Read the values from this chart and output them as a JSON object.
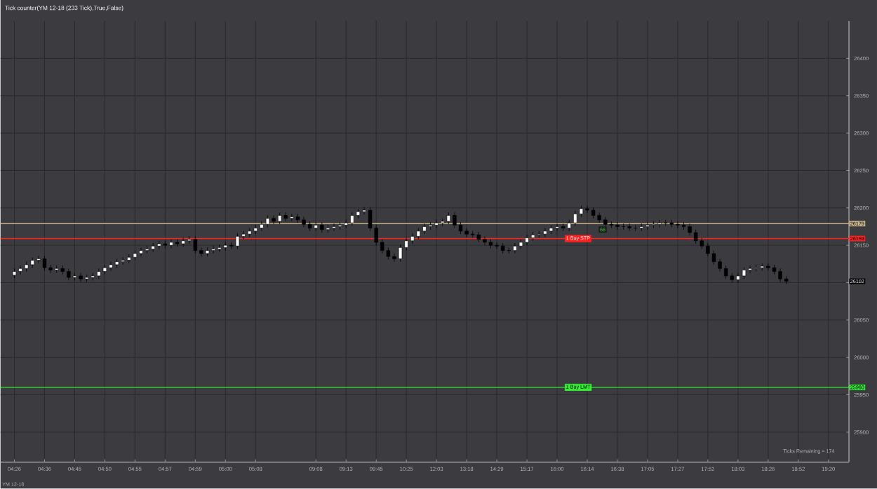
{
  "chart_data": {
    "type": "candlestick",
    "title": "Tick counter(YM 12-18 (233 Tick),True,False)",
    "categories": [
      "04:26",
      null,
      null,
      null,
      null,
      "04:36",
      null,
      null,
      null,
      null,
      "04:45",
      null,
      null,
      null,
      null,
      "04:50",
      null,
      null,
      null,
      null,
      "04:55",
      null,
      null,
      null,
      null,
      "04:57",
      null,
      null,
      null,
      null,
      "04:59",
      null,
      null,
      null,
      null,
      "05:00",
      null,
      null,
      null,
      null,
      "05:08",
      null,
      null,
      null,
      null,
      null,
      null,
      null,
      null,
      null,
      "09:08",
      null,
      null,
      null,
      null,
      "09:13",
      null,
      null,
      null,
      null,
      "09:45",
      null,
      null,
      null,
      null,
      "10:25",
      null,
      null,
      null,
      null,
      "12:03",
      null,
      null,
      null,
      null,
      "13:18",
      null,
      null,
      null,
      null,
      "14:29",
      null,
      null,
      null,
      null,
      "15:17",
      null,
      null,
      null,
      null,
      "16:00",
      null,
      null,
      null,
      null,
      "16:14",
      null,
      null,
      null,
      null,
      "16:38",
      null,
      null,
      null,
      null,
      "17:05",
      null,
      null,
      null,
      null,
      "17:27",
      null,
      null,
      null,
      null,
      "17:52",
      null,
      null,
      null,
      null,
      "18:03",
      null,
      null,
      null,
      null,
      "18:26",
      null,
      null,
      null,
      null,
      "18:52",
      null,
      null,
      null,
      null,
      "19:20"
    ],
    "ohlc": [
      [
        26110,
        26119,
        26106,
        26115
      ],
      [
        26115,
        26123,
        26111,
        26119
      ],
      [
        26119,
        26128,
        26115,
        26124
      ],
      [
        26124,
        26134,
        26120,
        26130
      ],
      [
        26130,
        26136,
        26126,
        26132
      ],
      [
        26132,
        26136,
        26116,
        26120
      ],
      [
        26120,
        26124,
        26113,
        26117
      ],
      [
        26117,
        26123,
        26113,
        26119
      ],
      [
        26119,
        26123,
        26111,
        26115
      ],
      [
        26115,
        26119,
        26103,
        26107
      ],
      [
        26107,
        26113,
        26103,
        26109
      ],
      [
        26109,
        26113,
        26101,
        26105
      ],
      [
        26105,
        26111,
        26101,
        26107
      ],
      [
        26107,
        26113,
        26103,
        26109
      ],
      [
        26109,
        26119,
        26105,
        26115
      ],
      [
        26115,
        26124,
        26111,
        26120
      ],
      [
        26120,
        26128,
        26116,
        26124
      ],
      [
        26124,
        26132,
        26120,
        26128
      ],
      [
        26128,
        26134,
        26124,
        26130
      ],
      [
        26130,
        26138,
        26126,
        26134
      ],
      [
        26134,
        26143,
        26130,
        26139
      ],
      [
        26139,
        26147,
        26135,
        26143
      ],
      [
        26143,
        26149,
        26139,
        26145
      ],
      [
        26145,
        26153,
        26141,
        26149
      ],
      [
        26149,
        26156,
        26145,
        26152
      ],
      [
        26152,
        26156,
        26146,
        26150
      ],
      [
        26150,
        26158,
        26146,
        26154
      ],
      [
        26154,
        26158,
        26148,
        26152
      ],
      [
        26152,
        26160,
        26148,
        26156
      ],
      [
        26156,
        26162,
        26152,
        26158
      ],
      [
        26158,
        26162,
        26139,
        26143
      ],
      [
        26143,
        26147,
        26135,
        26139
      ],
      [
        26139,
        26147,
        26135,
        26143
      ],
      [
        26143,
        26149,
        26139,
        26145
      ],
      [
        26145,
        26151,
        26141,
        26147
      ],
      [
        26147,
        26154,
        26143,
        26150
      ],
      [
        26150,
        26154,
        26145,
        26149
      ],
      [
        26149,
        26166,
        26145,
        26162
      ],
      [
        26162,
        26169,
        26158,
        26165
      ],
      [
        26165,
        26173,
        26161,
        26169
      ],
      [
        26169,
        26177,
        26165,
        26173
      ],
      [
        26173,
        26182,
        26169,
        26178
      ],
      [
        26178,
        26190,
        26174,
        26186
      ],
      [
        26186,
        26190,
        26178,
        26182
      ],
      [
        26182,
        26194,
        26178,
        26190
      ],
      [
        26190,
        26194,
        26182,
        26186
      ],
      [
        26186,
        26192,
        26182,
        26188
      ],
      [
        26188,
        26192,
        26180,
        26184
      ],
      [
        26184,
        26188,
        26174,
        26178
      ],
      [
        26178,
        26182,
        26169,
        26173
      ],
      [
        26173,
        26181,
        26169,
        26177
      ],
      [
        26177,
        26181,
        26167,
        26171
      ],
      [
        26171,
        26177,
        26167,
        26173
      ],
      [
        26173,
        26179,
        26169,
        26175
      ],
      [
        26175,
        26181,
        26171,
        26177
      ],
      [
        26177,
        26184,
        26173,
        26180
      ],
      [
        26180,
        26194,
        26176,
        26190
      ],
      [
        26190,
        26199,
        26186,
        26195
      ],
      [
        26195,
        26201,
        26191,
        26197
      ],
      [
        26197,
        26201,
        26169,
        26173
      ],
      [
        26173,
        26177,
        26150,
        26154
      ],
      [
        26154,
        26158,
        26139,
        26143
      ],
      [
        26143,
        26147,
        26131,
        26135
      ],
      [
        26135,
        26139,
        26128,
        26132
      ],
      [
        26132,
        26151,
        26128,
        26147
      ],
      [
        26147,
        26160,
        26143,
        26156
      ],
      [
        26156,
        26166,
        26152,
        26162
      ],
      [
        26162,
        26173,
        26158,
        26169
      ],
      [
        26169,
        26179,
        26165,
        26175
      ],
      [
        26175,
        26181,
        26171,
        26177
      ],
      [
        26177,
        26184,
        26173,
        26180
      ],
      [
        26180,
        26186,
        26176,
        26182
      ],
      [
        26182,
        26194,
        26178,
        26190
      ],
      [
        26190,
        26194,
        26173,
        26177
      ],
      [
        26177,
        26181,
        26165,
        26169
      ],
      [
        26169,
        26173,
        26161,
        26165
      ],
      [
        26165,
        26169,
        26160,
        26164
      ],
      [
        26164,
        26168,
        26154,
        26158
      ],
      [
        26158,
        26162,
        26150,
        26154
      ],
      [
        26154,
        26158,
        26146,
        26150
      ],
      [
        26150,
        26154,
        26145,
        26149
      ],
      [
        26149,
        26153,
        26139,
        26143
      ],
      [
        26143,
        26147,
        26139,
        26143
      ],
      [
        26143,
        26153,
        26139,
        26149
      ],
      [
        26149,
        26158,
        26145,
        26154
      ],
      [
        26154,
        26164,
        26150,
        26160
      ],
      [
        26160,
        26168,
        26156,
        26164
      ],
      [
        26164,
        26169,
        26160,
        26165
      ],
      [
        26165,
        26173,
        26161,
        26169
      ],
      [
        26169,
        26177,
        26165,
        26173
      ],
      [
        26173,
        26179,
        26169,
        26175
      ],
      [
        26175,
        26179,
        26169,
        26173
      ],
      [
        26173,
        26184,
        26169,
        26180
      ],
      [
        26180,
        26196,
        26176,
        26192
      ],
      [
        26192,
        26203,
        26188,
        26199
      ],
      [
        26199,
        26203,
        26193,
        26197
      ],
      [
        26197,
        26201,
        26186,
        26190
      ],
      [
        26190,
        26194,
        26180,
        26184
      ],
      [
        26184,
        26188,
        26174,
        26178
      ],
      [
        26178,
        26182,
        26173,
        26177
      ],
      [
        26177,
        26181,
        26171,
        26175
      ],
      [
        26175,
        26179,
        26171,
        26175
      ],
      [
        26175,
        26179,
        26169,
        26173
      ],
      [
        26173,
        26177,
        26169,
        26173
      ],
      [
        26173,
        26179,
        26169,
        26175
      ],
      [
        26175,
        26181,
        26171,
        26177
      ],
      [
        26177,
        26182,
        26173,
        26178
      ],
      [
        26178,
        26184,
        26174,
        26180
      ],
      [
        26180,
        26184,
        26176,
        26180
      ],
      [
        26180,
        26184,
        26174,
        26178
      ],
      [
        26178,
        26182,
        26173,
        26177
      ],
      [
        26177,
        26181,
        26171,
        26175
      ],
      [
        26175,
        26179,
        26163,
        26167
      ],
      [
        26167,
        26171,
        26152,
        26156
      ],
      [
        26156,
        26160,
        26145,
        26149
      ],
      [
        26149,
        26153,
        26135,
        26139
      ],
      [
        26139,
        26143,
        26124,
        26128
      ],
      [
        26128,
        26132,
        26115,
        26119
      ],
      [
        26119,
        26123,
        26105,
        26109
      ],
      [
        26109,
        26113,
        26100,
        26104
      ],
      [
        26104,
        26113,
        26100,
        26109
      ],
      [
        26109,
        26121,
        26105,
        26117
      ],
      [
        26117,
        26123,
        26113,
        26119
      ],
      [
        26119,
        26124,
        26115,
        26120
      ],
      [
        26120,
        26126,
        26116,
        26122
      ],
      [
        26122,
        26126,
        26116,
        26120
      ],
      [
        26120,
        26124,
        26111,
        26115
      ],
      [
        26115,
        26119,
        26101,
        26105
      ],
      [
        26105,
        26109,
        26098,
        26102
      ],
      null,
      null,
      null,
      null,
      null,
      null,
      null
    ],
    "ylim": [
      25860,
      26450
    ],
    "yticks": [
      25900,
      25950,
      26000,
      26050,
      {
        "value": 26100,
        "label": null
      },
      26150,
      26200,
      26250,
      26300,
      26350,
      26400
    ],
    "grid": true,
    "ref_lines": [
      {
        "axis": "y",
        "value": 26179,
        "label": "26179",
        "color": "#c8b48c"
      },
      {
        "axis": "y",
        "value": 26159,
        "label": "26159",
        "color": "#ff2020"
      },
      {
        "axis": "y",
        "value": 25960,
        "label": "25960",
        "color": "#33ee33"
      }
    ],
    "annotations": [
      "Ticks Remaining = 174",
      "YM 12-18",
      {
        "text": "1 Buy STP",
        "y": 26159
      },
      {
        "text": "1 Buy LMT",
        "y": 25960
      },
      "26102",
      {
        "text": "66",
        "y": 26171
      }
    ]
  }
}
